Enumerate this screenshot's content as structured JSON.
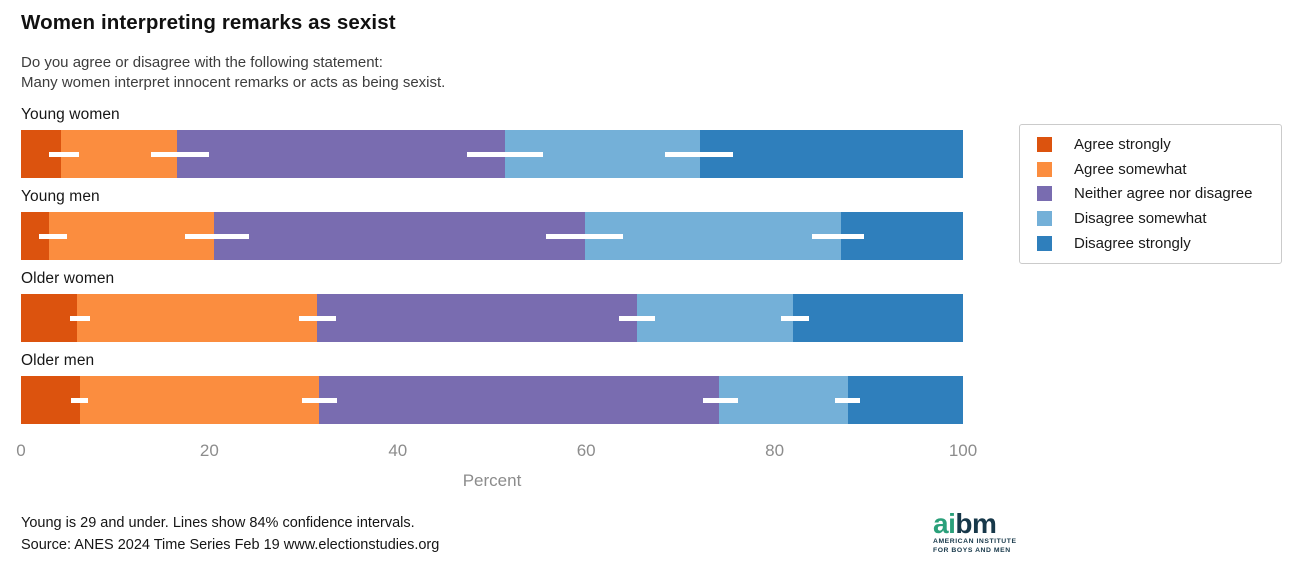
{
  "header": {
    "title": "Women interpreting remarks as sexist",
    "subtitle_line1": "Do you agree or disagree with the following statement:",
    "subtitle_line2": "Many women interpret innocent remarks or acts as being sexist."
  },
  "chart_data": {
    "type": "bar",
    "orientation": "horizontal",
    "stacked": true,
    "unit": "percent",
    "xlabel": "Percent",
    "xlim": [
      0,
      100
    ],
    "x_ticks": [
      0,
      20,
      40,
      60,
      80,
      100
    ],
    "grid": false,
    "legend_position": "right",
    "categories": [
      "Young women",
      "Young men",
      "Older women",
      "Older men"
    ],
    "series": [
      {
        "name": "Agree strongly",
        "color": "#dc530e",
        "values": [
          4.2,
          3.0,
          5.9,
          6.3
        ]
      },
      {
        "name": "Agree somewhat",
        "color": "#fb8d3f",
        "values": [
          12.4,
          17.5,
          25.5,
          25.3
        ]
      },
      {
        "name": "Neither agree nor disagree",
        "color": "#796cb0",
        "values": [
          34.8,
          39.4,
          34.0,
          42.5
        ]
      },
      {
        "name": "Disagree somewhat",
        "color": "#74b0d8",
        "values": [
          20.7,
          27.2,
          16.6,
          13.7
        ]
      },
      {
        "name": "Disagree strongly",
        "color": "#2f7fbc",
        "values": [
          27.9,
          12.9,
          18.0,
          12.2
        ]
      }
    ],
    "cumulative_boundaries": {
      "Young women": [
        4.2,
        16.6,
        51.4,
        72.1
      ],
      "Young men": [
        3.0,
        20.5,
        59.9,
        87.1
      ],
      "Older women": [
        5.9,
        31.4,
        65.4,
        82.0
      ],
      "Older men": [
        6.3,
        31.6,
        74.1,
        87.8
      ]
    },
    "confidence_intervals": {
      "level": "84%",
      "marker_color": "#ffffff",
      "bounds_cumulative": {
        "Young women": [
          [
            3.0,
            6.2
          ],
          [
            13.8,
            20.0
          ],
          [
            47.3,
            55.4
          ],
          [
            68.4,
            75.6
          ]
        ],
        "Young men": [
          [
            1.9,
            4.9
          ],
          [
            17.4,
            24.2
          ],
          [
            55.7,
            63.9
          ],
          [
            84.0,
            89.5
          ]
        ],
        "Older women": [
          [
            5.2,
            7.3
          ],
          [
            29.5,
            33.4
          ],
          [
            63.5,
            67.3
          ],
          [
            80.7,
            83.7
          ]
        ],
        "Older men": [
          [
            5.3,
            7.1
          ],
          [
            29.8,
            33.6
          ],
          [
            72.4,
            76.1
          ],
          [
            86.4,
            89.1
          ]
        ]
      }
    }
  },
  "footer": {
    "note_line1": "Young is 29 and under. Lines show 84% confidence intervals.",
    "note_line2": "Source: ANES 2024 Time Series Feb 19 www.electionstudies.org"
  },
  "logo": {
    "brand_prefix": "ai",
    "brand_suffix": "bm",
    "tagline_line1": "AMERICAN INSTITUTE",
    "tagline_line2": "FOR BOYS AND MEN",
    "green": "#2aa07a",
    "navy": "#17384a"
  }
}
